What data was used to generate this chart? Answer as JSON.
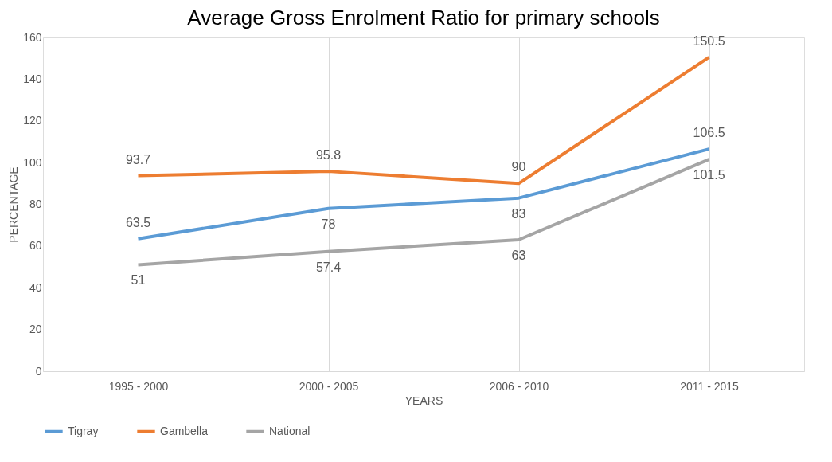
{
  "chart_data": {
    "type": "line",
    "title": "Average Gross Enrolment Ratio for primary schools",
    "xlabel": "YEARS",
    "ylabel": "PERCENTAGE",
    "categories": [
      "1995  - 2000",
      "2000  - 2005",
      "2006  - 2010",
      "2011  - 2015"
    ],
    "series": [
      {
        "name": "Tigray",
        "color": "#5b9bd5",
        "values": [
          63.5,
          78,
          83,
          106.5
        ]
      },
      {
        "name": "Gambella",
        "color": "#ed7d31",
        "values": [
          93.7,
          95.8,
          90,
          150.5
        ]
      },
      {
        "name": "National",
        "color": "#a5a5a5",
        "values": [
          51,
          57.4,
          63,
          101.5
        ]
      }
    ],
    "ylim": [
      0,
      160
    ],
    "yticks": [
      0,
      20,
      40,
      60,
      80,
      100,
      120,
      140,
      160
    ],
    "grid": "x",
    "legend": "bottom",
    "data_labels": true,
    "marker": "none",
    "line_style": "solid"
  }
}
